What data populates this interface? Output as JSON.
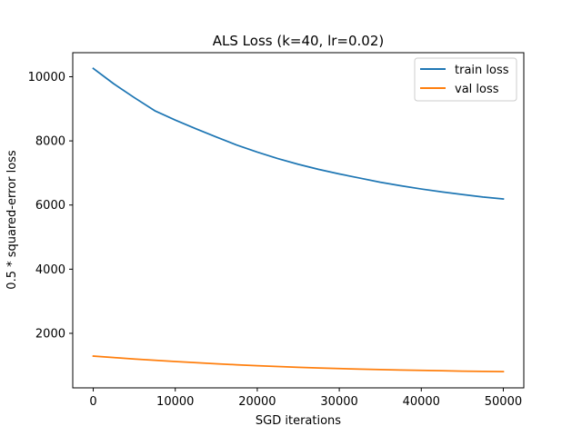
{
  "chart_data": {
    "type": "line",
    "title": "ALS Loss (k=40, lr=0.02)",
    "xlabel": "SGD iterations",
    "ylabel": "0.5 * squared-error loss",
    "xlim": [
      -2500,
      52500
    ],
    "ylim": [
      300,
      10750
    ],
    "xticks": [
      0,
      10000,
      20000,
      30000,
      40000,
      50000
    ],
    "xtick_labels": [
      "0",
      "10000",
      "20000",
      "30000",
      "40000",
      "50000"
    ],
    "yticks": [
      2000,
      4000,
      6000,
      8000,
      10000
    ],
    "ytick_labels": [
      "2000",
      "4000",
      "6000",
      "8000",
      "10000"
    ],
    "grid": false,
    "legend_position": "top-right",
    "series": [
      {
        "name": "train loss",
        "color": "#1f77b4",
        "x": [
          0,
          2500,
          5000,
          7500,
          10000,
          12500,
          15000,
          17500,
          20000,
          22500,
          25000,
          27500,
          30000,
          32500,
          35000,
          37500,
          40000,
          42500,
          45000,
          47500,
          50000
        ],
        "values": [
          10260,
          9780,
          9350,
          8940,
          8650,
          8380,
          8120,
          7870,
          7650,
          7450,
          7270,
          7110,
          6970,
          6840,
          6710,
          6600,
          6500,
          6410,
          6330,
          6250,
          6190
        ]
      },
      {
        "name": "val loss",
        "color": "#ff7f0e",
        "x": [
          0,
          2500,
          5000,
          7500,
          10000,
          12500,
          15000,
          17500,
          20000,
          22500,
          25000,
          27500,
          30000,
          32500,
          35000,
          37500,
          40000,
          42500,
          45000,
          47500,
          50000
        ],
        "values": [
          1290,
          1245,
          1200,
          1160,
          1120,
          1085,
          1050,
          1020,
          990,
          965,
          940,
          920,
          900,
          885,
          870,
          857,
          845,
          833,
          822,
          812,
          805
        ]
      }
    ]
  }
}
